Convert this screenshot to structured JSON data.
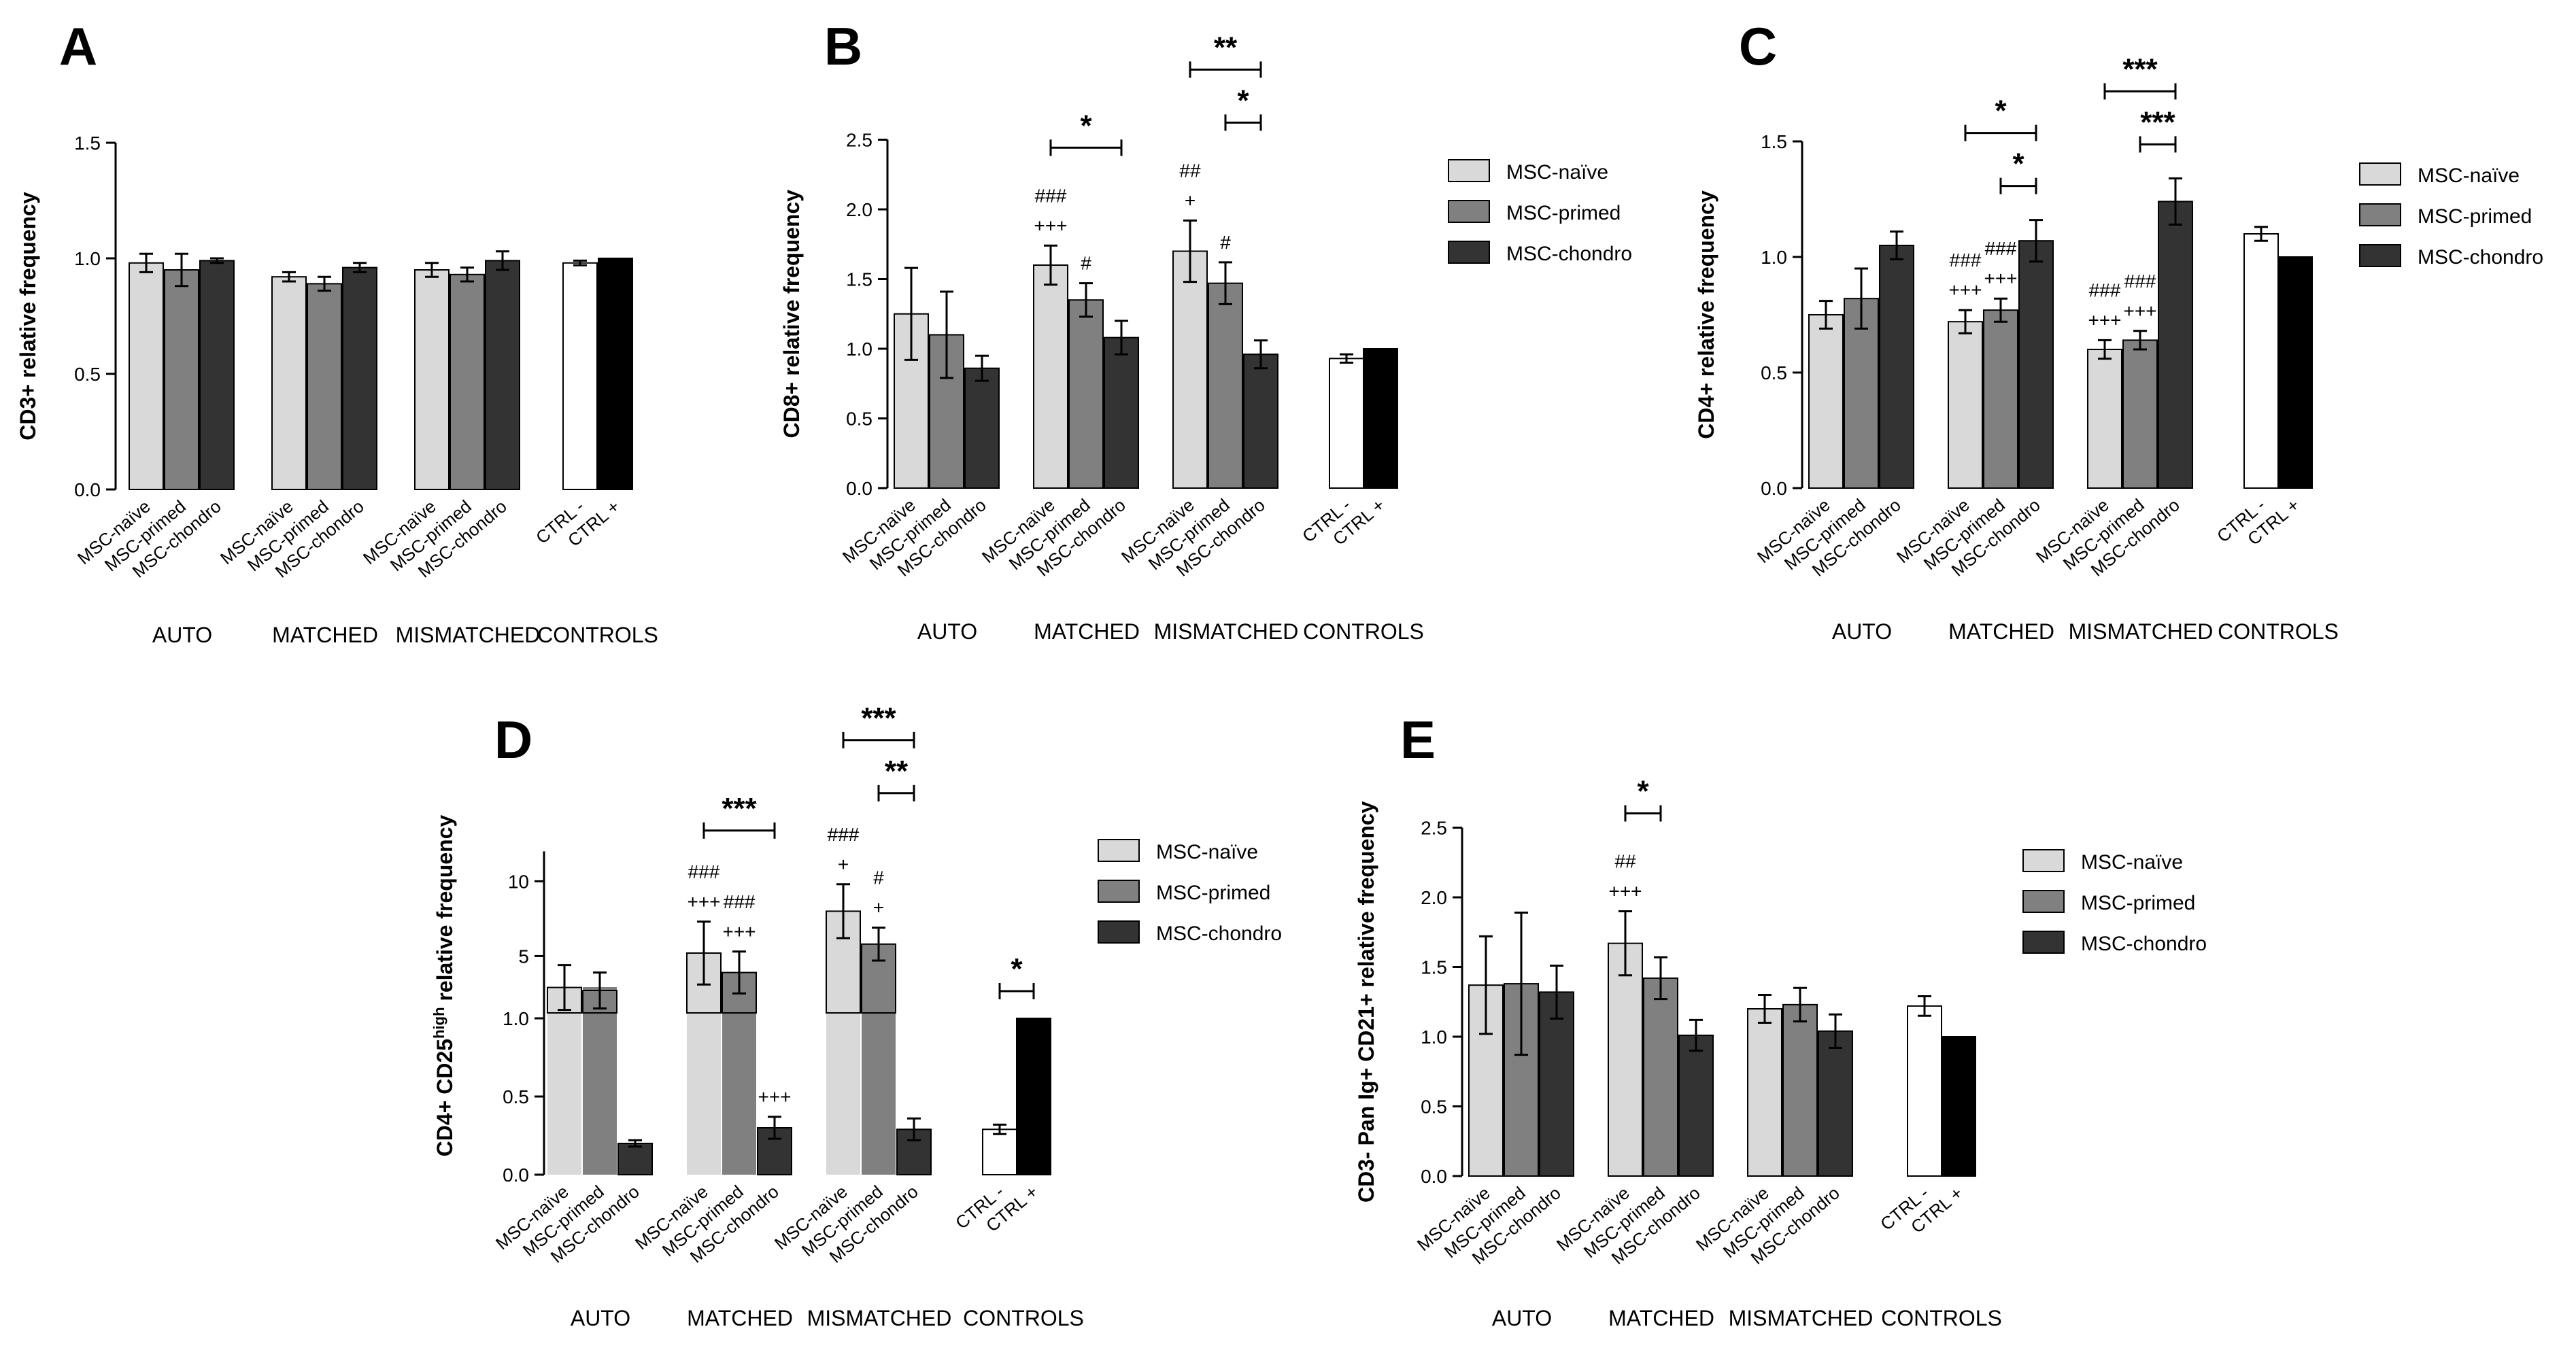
{
  "figure": {
    "group_labels": [
      "AUTO",
      "MATCHED",
      "MISMATCHED",
      "CONTROLS"
    ],
    "x_tick_labels": [
      "MSC-naïve",
      "MSC-primed",
      "MSC-chondro",
      "CTRL -",
      "CTRL +"
    ],
    "legend": [
      "MSC-naïve",
      "MSC-primed",
      "MSC-chondro"
    ],
    "colors": {
      "naive": "#d9d9d9",
      "primed": "#808080",
      "chondro": "#333333",
      "ctrl_neg": "#ffffff",
      "ctrl_pos": "#000000",
      "axis": "#000000"
    }
  },
  "chart_data": [
    {
      "panel": "A",
      "type": "bar",
      "ylabel": "CD3+ relative frequency",
      "ylim": [
        0,
        1.5
      ],
      "yticks": [
        "0.0",
        "0.5",
        "1.0",
        "1.5"
      ],
      "yticks_values": [
        0,
        0.5,
        1.0,
        1.5
      ],
      "groups": [
        "AUTO",
        "MATCHED",
        "MISMATCHED",
        "CONTROLS"
      ],
      "series": [
        {
          "name": "MSC-naïve",
          "values": [
            0.98,
            0.92,
            0.95
          ],
          "errors": [
            0.04,
            0.02,
            0.03
          ]
        },
        {
          "name": "MSC-primed",
          "values": [
            0.95,
            0.89,
            0.93
          ],
          "errors": [
            0.07,
            0.03,
            0.03
          ]
        },
        {
          "name": "MSC-chondro",
          "values": [
            0.99,
            0.96,
            0.99
          ],
          "errors": [
            0.01,
            0.02,
            0.04
          ]
        }
      ],
      "controls": [
        {
          "name": "CTRL -",
          "value": 0.98,
          "error": 0.01
        },
        {
          "name": "CTRL +",
          "value": 1.0,
          "error": 0
        }
      ],
      "annotations": [],
      "legend": false
    },
    {
      "panel": "B",
      "type": "bar",
      "ylabel": "CD8+ relative frequency",
      "ylim": [
        0,
        2.5
      ],
      "yticks": [
        "0.0",
        "0.5",
        "1.0",
        "1.5",
        "2.0",
        "2.5"
      ],
      "yticks_values": [
        0,
        0.5,
        1.0,
        1.5,
        2.0,
        2.5
      ],
      "groups": [
        "AUTO",
        "MATCHED",
        "MISMATCHED",
        "CONTROLS"
      ],
      "series": [
        {
          "name": "MSC-naïve",
          "values": [
            1.25,
            1.6,
            1.7
          ],
          "errors": [
            0.33,
            0.14,
            0.22
          ]
        },
        {
          "name": "MSC-primed",
          "values": [
            1.1,
            1.35,
            1.47
          ],
          "errors": [
            0.31,
            0.12,
            0.15
          ]
        },
        {
          "name": "MSC-chondro",
          "values": [
            0.86,
            1.08,
            0.96
          ],
          "errors": [
            0.09,
            0.12,
            0.1
          ]
        }
      ],
      "controls": [
        {
          "name": "CTRL -",
          "value": 0.93,
          "error": 0.03
        },
        {
          "name": "CTRL +",
          "value": 1.0,
          "error": 0
        }
      ],
      "annotations": [
        {
          "text": "###",
          "group": 1,
          "bar": 0,
          "row": 1
        },
        {
          "text": "+++",
          "group": 1,
          "bar": 0,
          "row": 0
        },
        {
          "text": "#",
          "group": 1,
          "bar": 1,
          "row": 0
        },
        {
          "text": "##",
          "group": 2,
          "bar": 0,
          "row": 1
        },
        {
          "text": "+",
          "group": 2,
          "bar": 0,
          "row": 0
        },
        {
          "text": "#",
          "group": 2,
          "bar": 1,
          "row": 0
        }
      ],
      "brackets": [
        {
          "text": "*",
          "group": 1,
          "from": 0,
          "to": 2,
          "level": 0
        },
        {
          "text": "**",
          "group": 2,
          "from": 0,
          "to": 2,
          "level": 1
        },
        {
          "text": "*",
          "group": 2,
          "from": 1,
          "to": 2,
          "level": 0
        }
      ],
      "legend": true
    },
    {
      "panel": "C",
      "type": "bar",
      "ylabel": "CD4+ relative frequency",
      "ylim": [
        0,
        1.5
      ],
      "yticks": [
        "0.0",
        "0.5",
        "1.0",
        "1.5"
      ],
      "yticks_values": [
        0,
        0.5,
        1.0,
        1.5
      ],
      "groups": [
        "AUTO",
        "MATCHED",
        "MISMATCHED",
        "CONTROLS"
      ],
      "series": [
        {
          "name": "MSC-naïve",
          "values": [
            0.75,
            0.72,
            0.6
          ],
          "errors": [
            0.06,
            0.05,
            0.04
          ]
        },
        {
          "name": "MSC-primed",
          "values": [
            0.82,
            0.77,
            0.64
          ],
          "errors": [
            0.13,
            0.05,
            0.04
          ]
        },
        {
          "name": "MSC-chondro",
          "values": [
            1.05,
            1.07,
            1.24
          ],
          "errors": [
            0.06,
            0.09,
            0.1
          ]
        }
      ],
      "controls": [
        {
          "name": "CTRL -",
          "value": 1.1,
          "error": 0.03
        },
        {
          "name": "CTRL +",
          "value": 1.0,
          "error": 0
        }
      ],
      "annotations": [
        {
          "text": "###",
          "group": 1,
          "bar": 0,
          "row": 1
        },
        {
          "text": "+++",
          "group": 1,
          "bar": 0,
          "row": 0
        },
        {
          "text": "###",
          "group": 1,
          "bar": 1,
          "row": 1
        },
        {
          "text": "+++",
          "group": 1,
          "bar": 1,
          "row": 0
        },
        {
          "text": "###",
          "group": 2,
          "bar": 0,
          "row": 1
        },
        {
          "text": "+++",
          "group": 2,
          "bar": 0,
          "row": 0
        },
        {
          "text": "###",
          "group": 2,
          "bar": 1,
          "row": 1
        },
        {
          "text": "+++",
          "group": 2,
          "bar": 1,
          "row": 0
        }
      ],
      "brackets": [
        {
          "text": "*",
          "group": 1,
          "from": 0,
          "to": 2,
          "level": 1
        },
        {
          "text": "*",
          "group": 1,
          "from": 1,
          "to": 2,
          "level": 0
        },
        {
          "text": "***",
          "group": 2,
          "from": 0,
          "to": 2,
          "level": 1
        },
        {
          "text": "***",
          "group": 2,
          "from": 1,
          "to": 2,
          "level": 0
        }
      ],
      "legend": true
    },
    {
      "panel": "D",
      "type": "bar",
      "ylabel_main": "CD4+ CD25",
      "ylabel_sup": "high",
      "ylabel_rest": " relative frequency",
      "broken_axis": {
        "lower": [
          0,
          1.2
        ],
        "upper": [
          1.2,
          12
        ]
      },
      "yticks_lower": [
        "0.0",
        "0.5",
        "1.0"
      ],
      "yticks_lower_values": [
        0,
        0.5,
        1.0
      ],
      "yticks_upper": [
        "5",
        "10"
      ],
      "yticks_upper_values": [
        5,
        10
      ],
      "groups": [
        "AUTO",
        "MATCHED",
        "MISMATCHED",
        "CONTROLS"
      ],
      "series": [
        {
          "name": "MSC-naïve",
          "values": [
            2.9,
            5.2,
            8.0
          ],
          "errors": [
            1.5,
            2.1,
            1.8
          ]
        },
        {
          "name": "MSC-primed",
          "values": [
            2.7,
            3.9,
            5.8
          ],
          "errors": [
            1.2,
            1.4,
            1.1
          ]
        },
        {
          "name": "MSC-chondro",
          "values": [
            0.2,
            0.3,
            0.29
          ],
          "errors": [
            0.02,
            0.07,
            0.07
          ]
        }
      ],
      "controls": [
        {
          "name": "CTRL -",
          "value": 0.29,
          "error": 0.03
        },
        {
          "name": "CTRL +",
          "value": 1.0,
          "error": 0
        }
      ],
      "annotations": [
        {
          "text": "###",
          "group": 1,
          "bar": 0,
          "row": 1
        },
        {
          "text": "+++",
          "group": 1,
          "bar": 0,
          "row": 0
        },
        {
          "text": "###",
          "group": 1,
          "bar": 1,
          "row": 1
        },
        {
          "text": "+++",
          "group": 1,
          "bar": 1,
          "row": 0
        },
        {
          "text": "+++",
          "group": 1,
          "bar": 2,
          "row": 0
        },
        {
          "text": "###",
          "group": 2,
          "bar": 0,
          "row": 1
        },
        {
          "text": "+",
          "group": 2,
          "bar": 0,
          "row": 0
        },
        {
          "text": "#",
          "group": 2,
          "bar": 1,
          "row": 1
        },
        {
          "text": "+",
          "group": 2,
          "bar": 1,
          "row": 0
        }
      ],
      "brackets": [
        {
          "text": "***",
          "group": 1,
          "from": 0,
          "to": 2,
          "level": 0
        },
        {
          "text": "***",
          "group": 2,
          "from": 0,
          "to": 2,
          "level": 1
        },
        {
          "text": "**",
          "group": 2,
          "from": 1,
          "to": 2,
          "level": 0
        },
        {
          "text": "*",
          "group": 3,
          "from": 0,
          "to": 1,
          "level": 0
        }
      ],
      "legend": true
    },
    {
      "panel": "E",
      "type": "bar",
      "ylabel": "CD3- Pan Ig+ CD21+ relative frequency",
      "ylim": [
        0,
        2.5
      ],
      "yticks": [
        "0.0",
        "0.5",
        "1.0",
        "1.5",
        "2.0",
        "2.5"
      ],
      "yticks_values": [
        0,
        0.5,
        1.0,
        1.5,
        2.0,
        2.5
      ],
      "groups": [
        "AUTO",
        "MATCHED",
        "MISMATCHED",
        "CONTROLS"
      ],
      "series": [
        {
          "name": "MSC-naïve",
          "values": [
            1.37,
            1.67,
            1.2
          ],
          "errors": [
            0.35,
            0.23,
            0.1
          ]
        },
        {
          "name": "MSC-primed",
          "values": [
            1.38,
            1.42,
            1.23
          ],
          "errors": [
            0.51,
            0.15,
            0.12
          ]
        },
        {
          "name": "MSC-chondro",
          "values": [
            1.32,
            1.01,
            1.04
          ],
          "errors": [
            0.19,
            0.11,
            0.12
          ]
        }
      ],
      "controls": [
        {
          "name": "CTRL -",
          "value": 1.22,
          "error": 0.07
        },
        {
          "name": "CTRL +",
          "value": 1.0,
          "error": 0
        }
      ],
      "annotations": [
        {
          "text": "##",
          "group": 1,
          "bar": 0,
          "row": 1
        },
        {
          "text": "+++",
          "group": 1,
          "bar": 0,
          "row": 0
        }
      ],
      "brackets": [
        {
          "text": "*",
          "group": 1,
          "from": 0,
          "to": 1,
          "level": 0
        }
      ],
      "legend": true
    }
  ]
}
